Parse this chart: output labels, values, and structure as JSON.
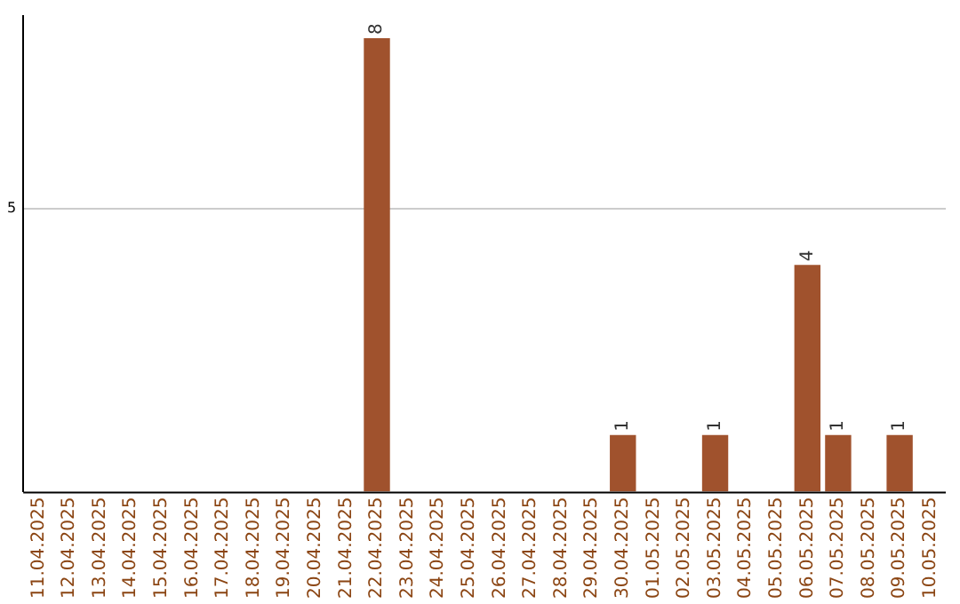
{
  "chart_data": {
    "type": "bar",
    "categories": [
      "11.04.2025",
      "12.04.2025",
      "13.04.2025",
      "14.04.2025",
      "15.04.2025",
      "16.04.2025",
      "17.04.2025",
      "18.04.2025",
      "19.04.2025",
      "20.04.2025",
      "21.04.2025",
      "22.04.2025",
      "23.04.2025",
      "24.04.2025",
      "25.04.2025",
      "26.04.2025",
      "27.04.2025",
      "28.04.2025",
      "29.04.2025",
      "30.04.2025",
      "01.05.2025",
      "02.05.2025",
      "03.05.2025",
      "04.05.2025",
      "05.05.2025",
      "06.05.2025",
      "07.05.2025",
      "08.05.2025",
      "09.05.2025",
      "10.05.2025"
    ],
    "values": [
      null,
      null,
      null,
      null,
      null,
      null,
      null,
      null,
      null,
      null,
      null,
      8,
      null,
      null,
      null,
      null,
      null,
      null,
      null,
      1,
      null,
      null,
      1,
      null,
      null,
      4,
      1,
      null,
      1,
      null
    ],
    "color": "#a0522d",
    "ylim": [
      0,
      8.4
    ],
    "yticks": [
      5
    ],
    "grid": "y",
    "legend": false,
    "data_labels": true
  }
}
